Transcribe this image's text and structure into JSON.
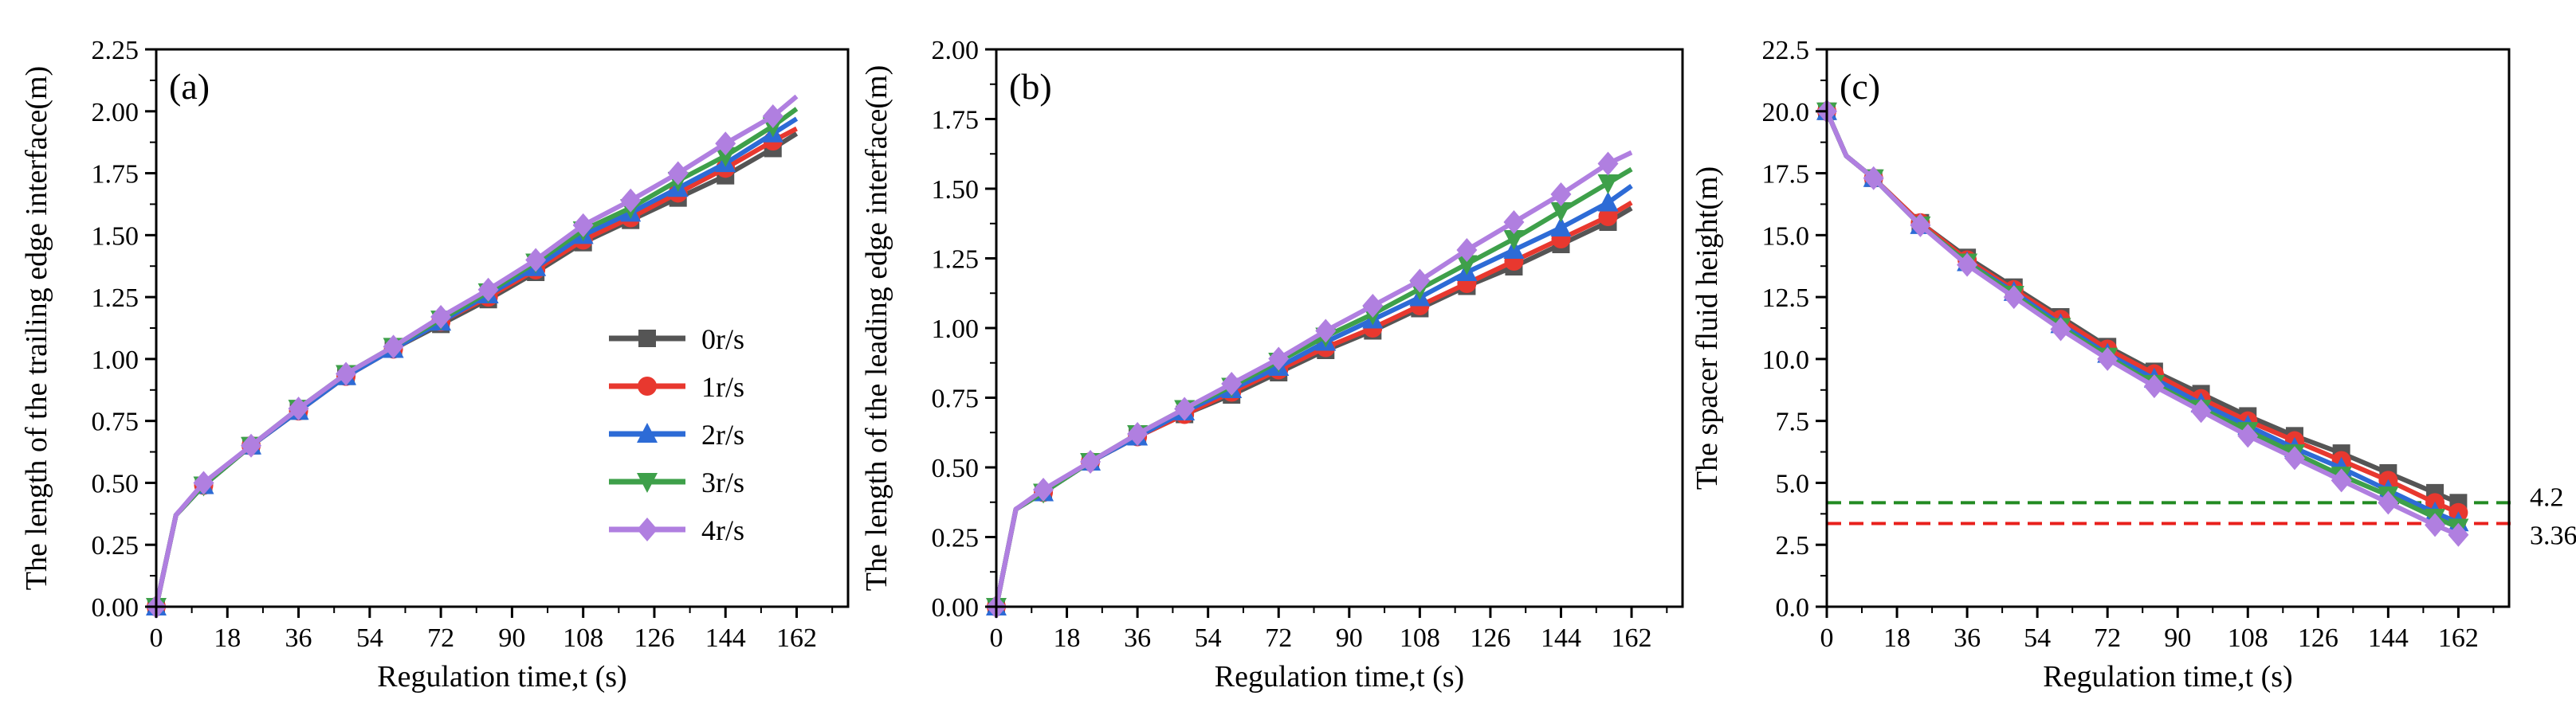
{
  "chart_data": [
    {
      "type": "line",
      "panel_label": "(a)",
      "xlabel": "Regulation time,t (s)",
      "ylabel": "The length of the trailing edge interface(m)",
      "xlim": [
        0,
        175
      ],
      "ylim": [
        0,
        2.25
      ],
      "xticks": [
        "0",
        "18",
        "36",
        "54",
        "72",
        "90",
        "108",
        "126",
        "144",
        "162"
      ],
      "xtick_values": [
        0,
        18,
        36,
        54,
        72,
        90,
        108,
        126,
        144,
        162
      ],
      "yticks": [
        "0.00",
        "0.25",
        "0.50",
        "0.75",
        "1.00",
        "1.25",
        "1.50",
        "1.75",
        "2.00",
        "2.25"
      ],
      "ytick_values": [
        0,
        0.25,
        0.5,
        0.75,
        1.0,
        1.25,
        1.5,
        1.75,
        2.0,
        2.25
      ],
      "x": [
        0,
        5,
        12,
        24,
        36,
        48,
        60,
        72,
        84,
        96,
        108,
        120,
        132,
        144,
        156,
        162
      ],
      "marker_x": [
        0,
        12,
        24,
        36,
        48,
        60,
        72,
        84,
        96,
        108,
        120,
        132,
        144,
        156
      ],
      "series": [
        {
          "name": "0r/s",
          "color": "#555555",
          "marker": "square",
          "values": [
            0,
            0.37,
            0.49,
            0.65,
            0.79,
            0.93,
            1.04,
            1.14,
            1.24,
            1.35,
            1.47,
            1.56,
            1.65,
            1.74,
            1.85,
            1.91
          ]
        },
        {
          "name": "1r/s",
          "color": "#e8382f",
          "marker": "circle",
          "values": [
            0,
            0.37,
            0.49,
            0.65,
            0.79,
            0.93,
            1.04,
            1.15,
            1.25,
            1.36,
            1.48,
            1.57,
            1.67,
            1.77,
            1.88,
            1.93
          ]
        },
        {
          "name": "2r/s",
          "color": "#2d6bd6",
          "marker": "triangle-up",
          "values": [
            0,
            0.37,
            0.49,
            0.65,
            0.79,
            0.93,
            1.04,
            1.15,
            1.26,
            1.37,
            1.5,
            1.59,
            1.69,
            1.79,
            1.91,
            1.97
          ]
        },
        {
          "name": "3r/s",
          "color": "#3ea04a",
          "marker": "triangle-down",
          "values": [
            0,
            0.37,
            0.49,
            0.65,
            0.8,
            0.94,
            1.05,
            1.16,
            1.27,
            1.39,
            1.52,
            1.61,
            1.72,
            1.82,
            1.94,
            2.01
          ]
        },
        {
          "name": "4r/s",
          "color": "#b07fe0",
          "marker": "diamond",
          "values": [
            0,
            0.37,
            0.5,
            0.65,
            0.8,
            0.94,
            1.05,
            1.17,
            1.28,
            1.4,
            1.54,
            1.64,
            1.75,
            1.87,
            1.98,
            2.06
          ]
        }
      ],
      "legend": {
        "placement": "center-right",
        "entries": [
          "0r/s",
          "1r/s",
          "2r/s",
          "3r/s",
          "4r/s"
        ]
      }
    },
    {
      "type": "line",
      "panel_label": "(b)",
      "xlabel": "Regulation time,t (s)",
      "ylabel": "The length of the leading edge interface(m)",
      "xlim": [
        0,
        175
      ],
      "ylim": [
        0,
        2.0
      ],
      "xticks": [
        "0",
        "18",
        "36",
        "54",
        "72",
        "90",
        "108",
        "126",
        "144",
        "162"
      ],
      "xtick_values": [
        0,
        18,
        36,
        54,
        72,
        90,
        108,
        126,
        144,
        162
      ],
      "yticks": [
        "0.00",
        "0.25",
        "0.50",
        "0.75",
        "1.00",
        "1.25",
        "1.50",
        "1.75",
        "2.00"
      ],
      "ytick_values": [
        0,
        0.25,
        0.5,
        0.75,
        1.0,
        1.25,
        1.5,
        1.75,
        2.0
      ],
      "x": [
        0,
        5,
        12,
        24,
        36,
        48,
        60,
        72,
        84,
        96,
        108,
        120,
        132,
        144,
        156,
        162
      ],
      "marker_x": [
        0,
        12,
        24,
        36,
        48,
        60,
        72,
        84,
        96,
        108,
        120,
        132,
        144,
        156
      ],
      "series": [
        {
          "name": "0r/s",
          "color": "#555555",
          "marker": "square",
          "values": [
            0,
            0.35,
            0.41,
            0.52,
            0.61,
            0.69,
            0.76,
            0.84,
            0.92,
            0.99,
            1.07,
            1.15,
            1.22,
            1.3,
            1.38,
            1.43
          ]
        },
        {
          "name": "1r/s",
          "color": "#e8382f",
          "marker": "circle",
          "values": [
            0,
            0.35,
            0.41,
            0.52,
            0.61,
            0.69,
            0.77,
            0.85,
            0.93,
            1.0,
            1.08,
            1.16,
            1.24,
            1.32,
            1.4,
            1.45
          ]
        },
        {
          "name": "2r/s",
          "color": "#2d6bd6",
          "marker": "triangle-up",
          "values": [
            0,
            0.35,
            0.41,
            0.52,
            0.61,
            0.7,
            0.78,
            0.86,
            0.95,
            1.03,
            1.11,
            1.2,
            1.28,
            1.36,
            1.45,
            1.51
          ]
        },
        {
          "name": "3r/s",
          "color": "#3ea04a",
          "marker": "triangle-down",
          "values": [
            0,
            0.35,
            0.41,
            0.52,
            0.62,
            0.71,
            0.79,
            0.88,
            0.97,
            1.05,
            1.14,
            1.23,
            1.32,
            1.42,
            1.52,
            1.57
          ]
        },
        {
          "name": "4r/s",
          "color": "#b07fe0",
          "marker": "diamond",
          "values": [
            0,
            0.35,
            0.42,
            0.52,
            0.62,
            0.71,
            0.8,
            0.89,
            0.99,
            1.08,
            1.17,
            1.28,
            1.38,
            1.48,
            1.59,
            1.63
          ]
        }
      ]
    },
    {
      "type": "line",
      "panel_label": "(c)",
      "xlabel": "Regulation time,t (s)",
      "ylabel": "The spacer fluid height(m)",
      "xlim": [
        0,
        175
      ],
      "ylim": [
        0,
        22.5
      ],
      "xticks": [
        "0",
        "18",
        "36",
        "54",
        "72",
        "90",
        "108",
        "126",
        "144",
        "162"
      ],
      "xtick_values": [
        0,
        18,
        36,
        54,
        72,
        90,
        108,
        126,
        144,
        162
      ],
      "yticks": [
        "0.0",
        "2.5",
        "5.0",
        "7.5",
        "10.0",
        "12.5",
        "15.0",
        "17.5",
        "20.0",
        "22.5"
      ],
      "ytick_values": [
        0,
        2.5,
        5.0,
        7.5,
        10.0,
        12.5,
        15.0,
        17.5,
        20.0,
        22.5
      ],
      "x": [
        0,
        5,
        12,
        24,
        36,
        48,
        60,
        72,
        84,
        96,
        108,
        120,
        132,
        144,
        156,
        162
      ],
      "marker_x": [
        0,
        12,
        24,
        36,
        48,
        60,
        72,
        84,
        96,
        108,
        120,
        132,
        144,
        156,
        162
      ],
      "series": [
        {
          "name": "0r/s",
          "color": "#555555",
          "marker": "square",
          "values": [
            20.0,
            18.2,
            17.3,
            15.5,
            14.1,
            12.9,
            11.7,
            10.5,
            9.5,
            8.6,
            7.7,
            6.9,
            6.2,
            5.4,
            4.6,
            4.2
          ]
        },
        {
          "name": "1r/s",
          "color": "#e8382f",
          "marker": "circle",
          "values": [
            20.0,
            18.2,
            17.3,
            15.5,
            14.0,
            12.8,
            11.6,
            10.4,
            9.4,
            8.4,
            7.5,
            6.7,
            5.9,
            5.1,
            4.2,
            3.8
          ]
        },
        {
          "name": "2r/s",
          "color": "#2d6bd6",
          "marker": "triangle-up",
          "values": [
            20.0,
            18.2,
            17.3,
            15.4,
            13.9,
            12.7,
            11.4,
            10.2,
            9.2,
            8.2,
            7.3,
            6.4,
            5.6,
            4.7,
            3.8,
            3.4
          ]
        },
        {
          "name": "3r/s",
          "color": "#3ea04a",
          "marker": "triangle-down",
          "values": [
            20.0,
            18.2,
            17.3,
            15.4,
            13.9,
            12.6,
            11.3,
            10.1,
            9.0,
            8.0,
            7.1,
            6.2,
            5.3,
            4.5,
            3.6,
            3.2
          ]
        },
        {
          "name": "4r/s",
          "color": "#b07fe0",
          "marker": "diamond",
          "values": [
            20.0,
            18.2,
            17.3,
            15.4,
            13.8,
            12.5,
            11.2,
            10.0,
            8.9,
            7.9,
            6.9,
            6.0,
            5.1,
            4.2,
            3.3,
            2.9
          ]
        }
      ],
      "reference_lines": [
        {
          "value": 4.2,
          "label": "4.2",
          "color": "#228b22",
          "style": "dashed"
        },
        {
          "value": 3.36,
          "label": "3.36",
          "color": "#e8201c",
          "style": "dashed"
        }
      ]
    }
  ]
}
